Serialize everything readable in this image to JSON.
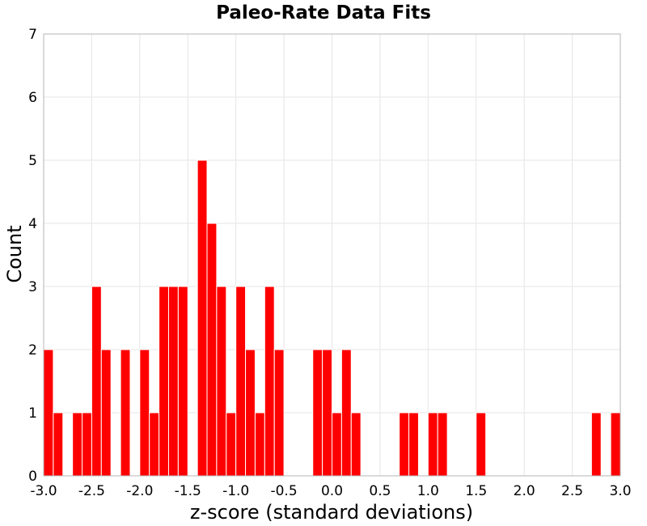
{
  "chart_data": {
    "type": "bar",
    "title": "Paleo-Rate Data Fits",
    "xlabel": "z-score (standard deviations)",
    "ylabel": "Count",
    "xlim": [
      -3.0,
      3.0
    ],
    "ylim": [
      0,
      7
    ],
    "grid": true,
    "bar_color": "#ff0000",
    "bin_width": 0.1,
    "x_ticks": [
      "-3.0",
      "-2.5",
      "-2.0",
      "-1.5",
      "-1.0",
      "-0.5",
      "0.0",
      "0.5",
      "1.0",
      "1.5",
      "2.0",
      "2.5",
      "3.0"
    ],
    "y_ticks": [
      "0",
      "1",
      "2",
      "3",
      "4",
      "5",
      "6",
      "7"
    ],
    "bins": [
      {
        "x": -2.95,
        "count": 2
      },
      {
        "x": -2.85,
        "count": 1
      },
      {
        "x": -2.65,
        "count": 1
      },
      {
        "x": -2.55,
        "count": 1
      },
      {
        "x": -2.45,
        "count": 3
      },
      {
        "x": -2.35,
        "count": 2
      },
      {
        "x": -2.15,
        "count": 2
      },
      {
        "x": -1.95,
        "count": 2
      },
      {
        "x": -1.85,
        "count": 1
      },
      {
        "x": -1.75,
        "count": 3
      },
      {
        "x": -1.65,
        "count": 3
      },
      {
        "x": -1.55,
        "count": 3
      },
      {
        "x": -1.35,
        "count": 5
      },
      {
        "x": -1.25,
        "count": 4
      },
      {
        "x": -1.15,
        "count": 3
      },
      {
        "x": -1.05,
        "count": 1
      },
      {
        "x": -0.95,
        "count": 3
      },
      {
        "x": -0.85,
        "count": 2
      },
      {
        "x": -0.75,
        "count": 1
      },
      {
        "x": -0.65,
        "count": 3
      },
      {
        "x": -0.55,
        "count": 2
      },
      {
        "x": -0.15,
        "count": 2
      },
      {
        "x": -0.05,
        "count": 2
      },
      {
        "x": 0.05,
        "count": 1
      },
      {
        "x": 0.15,
        "count": 2
      },
      {
        "x": 0.25,
        "count": 1
      },
      {
        "x": 0.75,
        "count": 1
      },
      {
        "x": 0.85,
        "count": 1
      },
      {
        "x": 1.05,
        "count": 1
      },
      {
        "x": 1.15,
        "count": 1
      },
      {
        "x": 1.55,
        "count": 1
      },
      {
        "x": 2.75,
        "count": 1
      },
      {
        "x": 2.95,
        "count": 1
      }
    ]
  }
}
